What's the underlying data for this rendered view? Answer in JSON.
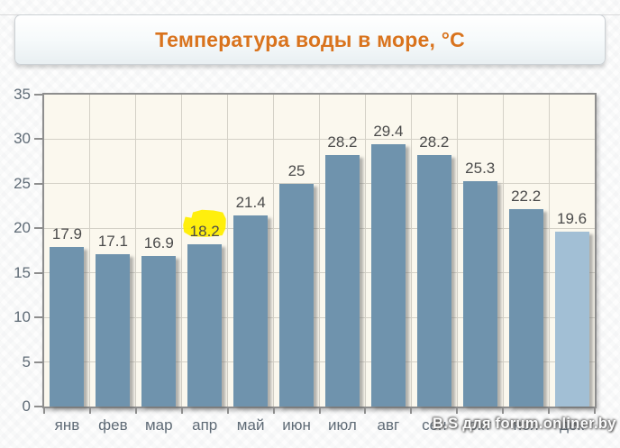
{
  "header": {
    "title": "Температура воды в море, °C",
    "title_color": "#d9731d"
  },
  "page": {
    "watermark": "B.S для forum.onliner.by"
  },
  "chart_data": {
    "type": "bar",
    "title": "Температура воды в море, °C",
    "categories": [
      "янв",
      "фев",
      "мар",
      "апр",
      "май",
      "июн",
      "июл",
      "авг",
      "сен",
      "окт",
      "ноя",
      "дек"
    ],
    "values": [
      17.9,
      17.1,
      16.9,
      18.2,
      21.4,
      25,
      28.2,
      29.4,
      28.2,
      25.3,
      22.2,
      19.6
    ],
    "xlabel": "",
    "ylabel": "",
    "ylim": [
      0,
      35
    ],
    "yticks": [
      0,
      5,
      10,
      15,
      20,
      25,
      30,
      35
    ],
    "grid": true,
    "legend": "none",
    "plot_background": "#fbf8ee",
    "bar_color": "#6f93ad",
    "last_bar_color": "#a2bfd5",
    "highlighted_last": true,
    "annotation": {
      "type": "yellow-highlight-marker",
      "month_index": 3,
      "month": "апр",
      "value": 18.2,
      "color": "#ffee00"
    }
  }
}
